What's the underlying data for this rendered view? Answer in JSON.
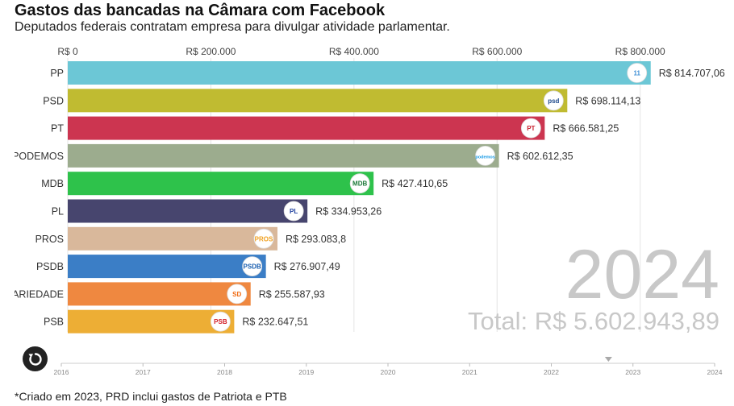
{
  "header": {
    "title": "Gastos das bancadas na Câmara com Facebook",
    "subtitle": "Deputados federais contratam empresa para divulgar atividade parlamentar."
  },
  "footnote": "*Criado em 2023, PRD inclui gastos de Patriota e PTB",
  "controls": {
    "replay_icon": "replay-icon"
  },
  "chart_data": {
    "type": "bar",
    "orientation": "horizontal",
    "xlim": [
      0,
      815000
    ],
    "x_ticks": [
      0,
      200000,
      400000,
      600000,
      800000
    ],
    "x_tick_labels": [
      "R$ 0",
      "R$ 200.000",
      "R$ 400.000",
      "R$ 600.000",
      "R$ 800.000"
    ],
    "grid": true,
    "categories": [
      "PP",
      "PSD",
      "PT",
      "PODEMOS",
      "MDB",
      "PL",
      "PROS",
      "PSDB",
      "SOLIDARIEDADE",
      "PSB"
    ],
    "values": [
      814707.06,
      698114.13,
      666581.25,
      602612.35,
      427410.65,
      334953.26,
      293083.8,
      276907.49,
      255587.93,
      232647.51
    ],
    "value_labels": [
      "R$ 814.707,06",
      "R$ 698.114,13",
      "R$ 666.581,25",
      "R$ 602.612,35",
      "R$ 427.410,65",
      "R$ 334.953,26",
      "R$ 293.083,8",
      "R$ 276.907,49",
      "R$ 255.587,93",
      "R$ 232.647,51"
    ],
    "colors": [
      "#6cc7d6",
      "#c0bb31",
      "#cc3550",
      "#9cac8e",
      "#2ec24b",
      "#47456e",
      "#d9b89b",
      "#3b7ec6",
      "#ef8840",
      "#edae35"
    ],
    "logos": [
      "11",
      "psd",
      "PT",
      "podemos",
      "MDB",
      "PL",
      "PROS",
      "PSDB",
      "SD",
      "PSB"
    ],
    "logo_colors": [
      "#3e8fd6",
      "#1e4a8c",
      "#c81e2c",
      "#1a9be6",
      "#1e7a3a",
      "#1e3f9e",
      "#f0a020",
      "#1a5fb0",
      "#f06a10",
      "#d21c24"
    ],
    "year": "2024",
    "total_label": "Total: R$ 5.602.943,89",
    "timeline": {
      "years": [
        "2016",
        "2017",
        "2018",
        "2019",
        "2020",
        "2021",
        "2022",
        "2023",
        "2024"
      ],
      "current_position": 6.7
    }
  }
}
